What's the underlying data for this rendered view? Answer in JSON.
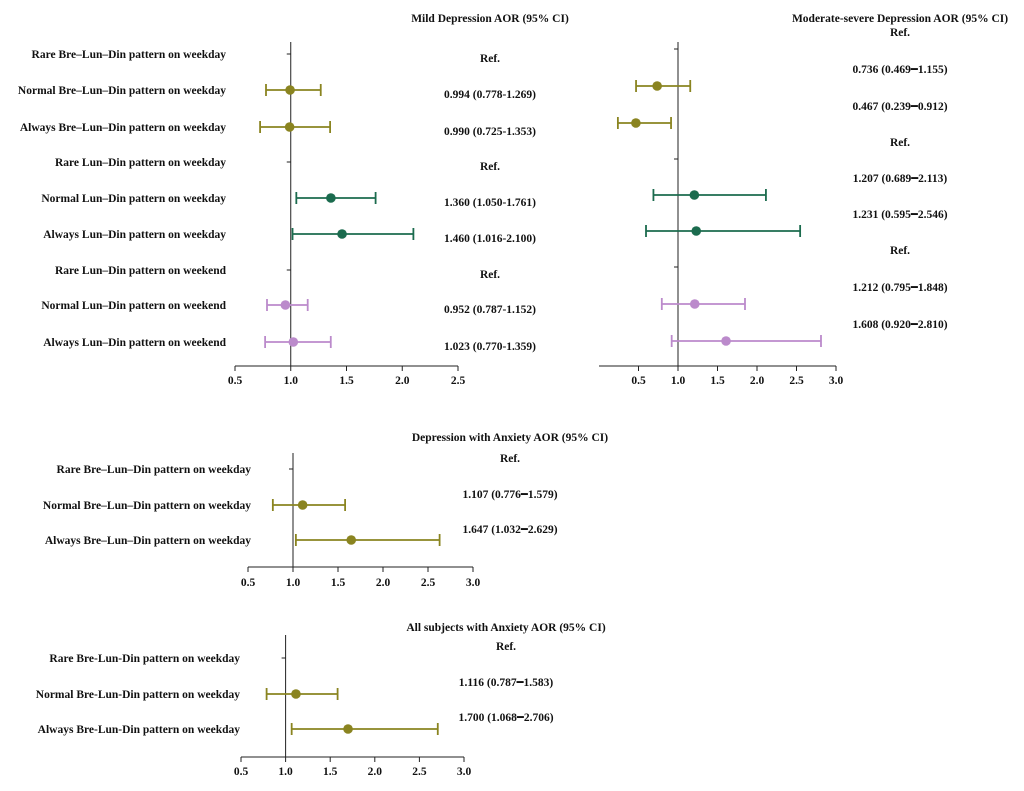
{
  "colors": {
    "olive": "#8a8420",
    "green": "#1b6b4e",
    "purple": "#bb8acb",
    "axis": "#222222"
  },
  "chart_data": [
    {
      "type": "forest",
      "title": "Mild Depression AOR (95% CI)",
      "xlim": [
        0.5,
        2.5
      ],
      "ticks": [
        0.5,
        1.0,
        1.5,
        2.0,
        2.5
      ],
      "tick_labels": [
        "0.5",
        "1.0",
        "1.5",
        "2.0",
        "2.5"
      ],
      "reference_line": 1.0,
      "rows": [
        {
          "label": "Rare Bre–Lun–Din pattern on weekday",
          "ref": true,
          "ci_text": "Ref.",
          "color": "olive"
        },
        {
          "label": "Normal Bre–Lun–Din pattern on weekday",
          "or": 0.994,
          "lo": 0.778,
          "hi": 1.269,
          "ci_text": "0.994 (0.778-1.269)",
          "color": "olive"
        },
        {
          "label": "Always Bre–Lun–Din pattern on weekday",
          "or": 0.99,
          "lo": 0.725,
          "hi": 1.353,
          "ci_text": "0.990 (0.725-1.353)",
          "color": "olive"
        },
        {
          "label": "Rare Lun–Din pattern on weekday",
          "ref": true,
          "ci_text": "Ref.",
          "color": "green"
        },
        {
          "label": "Normal Lun–Din pattern on weekday",
          "or": 1.36,
          "lo": 1.05,
          "hi": 1.761,
          "ci_text": "1.360 (1.050-1.761)",
          "color": "green"
        },
        {
          "label": "Always Lun–Din pattern on weekday",
          "or": 1.46,
          "lo": 1.016,
          "hi": 2.1,
          "ci_text": "1.460 (1.016-2.100)",
          "color": "green"
        },
        {
          "label": "Rare Lun–Din pattern on weekend",
          "ref": true,
          "ci_text": "Ref.",
          "color": "purple"
        },
        {
          "label": "Normal Lun–Din pattern on weekend",
          "or": 0.952,
          "lo": 0.787,
          "hi": 1.152,
          "ci_text": "0.952 (0.787-1.152)",
          "color": "purple"
        },
        {
          "label": "Always Lun–Din pattern on weekend",
          "or": 1.023,
          "lo": 0.77,
          "hi": 1.359,
          "ci_text": "1.023 (0.770-1.359)",
          "color": "purple"
        }
      ]
    },
    {
      "type": "forest",
      "title": "Moderate-severe Depression AOR (95% CI)",
      "xlim": [
        0.0,
        3.0
      ],
      "ticks": [
        0.5,
        1.0,
        1.5,
        2.0,
        2.5,
        3.0
      ],
      "tick_labels": [
        "0.5",
        "1.0",
        "1.5",
        "2.0",
        "2.5",
        "3.0"
      ],
      "reference_line": 1.0,
      "rows": [
        {
          "label": "",
          "ref": true,
          "ci_text": "Ref.",
          "color": "olive"
        },
        {
          "label": "",
          "or": 0.736,
          "lo": 0.469,
          "hi": 1.155,
          "ci_text": "0.736 (0.469━1.155)",
          "color": "olive"
        },
        {
          "label": "",
          "or": 0.467,
          "lo": 0.239,
          "hi": 0.912,
          "ci_text": "0.467 (0.239━0.912)",
          "color": "olive"
        },
        {
          "label": "",
          "ref": true,
          "ci_text": "Ref.",
          "color": "green"
        },
        {
          "label": "",
          "or": 1.207,
          "lo": 0.689,
          "hi": 2.113,
          "ci_text": "1.207 (0.689━2.113)",
          "color": "green"
        },
        {
          "label": "",
          "or": 1.231,
          "lo": 0.595,
          "hi": 2.546,
          "ci_text": "1.231 (0.595━2.546)",
          "color": "green"
        },
        {
          "label": "",
          "ref": true,
          "ci_text": "Ref.",
          "color": "purple"
        },
        {
          "label": "",
          "or": 1.212,
          "lo": 0.795,
          "hi": 1.848,
          "ci_text": "1.212 (0.795━1.848)",
          "color": "purple"
        },
        {
          "label": "",
          "or": 1.608,
          "lo": 0.92,
          "hi": 2.81,
          "ci_text": "1.608 (0.920━2.810)",
          "color": "purple"
        }
      ]
    },
    {
      "type": "forest",
      "title": "Depression with Anxiety AOR (95% CI)",
      "xlim": [
        0.5,
        3.0
      ],
      "ticks": [
        0.5,
        1.0,
        1.5,
        2.0,
        2.5,
        3.0
      ],
      "tick_labels": [
        "0.5",
        "1.0",
        "1.5",
        "2.0",
        "2.5",
        "3.0"
      ],
      "reference_line": 1.0,
      "rows": [
        {
          "label": "Rare Bre–Lun–Din pattern on weekday",
          "ref": true,
          "ci_text": "Ref.",
          "color": "olive"
        },
        {
          "label": "Normal Bre–Lun–Din pattern on weekday",
          "or": 1.107,
          "lo": 0.776,
          "hi": 1.579,
          "ci_text": "1.107 (0.776━1.579)",
          "color": "olive"
        },
        {
          "label": "Always Bre–Lun–Din pattern on weekday",
          "or": 1.647,
          "lo": 1.032,
          "hi": 2.629,
          "ci_text": "1.647 (1.032━2.629)",
          "color": "olive"
        }
      ]
    },
    {
      "type": "forest",
      "title": "All subjects with Anxiety AOR (95% CI)",
      "xlim": [
        0.5,
        3.0
      ],
      "ticks": [
        0.5,
        1.0,
        1.5,
        2.0,
        2.5,
        3.0
      ],
      "tick_labels": [
        "0.5",
        "1.0",
        "1.5",
        "2.0",
        "2.5",
        "3.0"
      ],
      "reference_line": 1.0,
      "rows": [
        {
          "label": "Rare Bre-Lun-Din pattern on weekday",
          "ref": true,
          "ci_text": "Ref.",
          "color": "olive"
        },
        {
          "label": "Normal Bre-Lun-Din pattern on weekday",
          "or": 1.116,
          "lo": 0.787,
          "hi": 1.583,
          "ci_text": "1.116 (0.787━1.583)",
          "color": "olive"
        },
        {
          "label": "Always Bre-Lun-Din pattern on weekday",
          "or": 1.7,
          "lo": 1.068,
          "hi": 2.706,
          "ci_text": "1.700 (1.068━2.706)",
          "color": "olive"
        }
      ]
    }
  ]
}
